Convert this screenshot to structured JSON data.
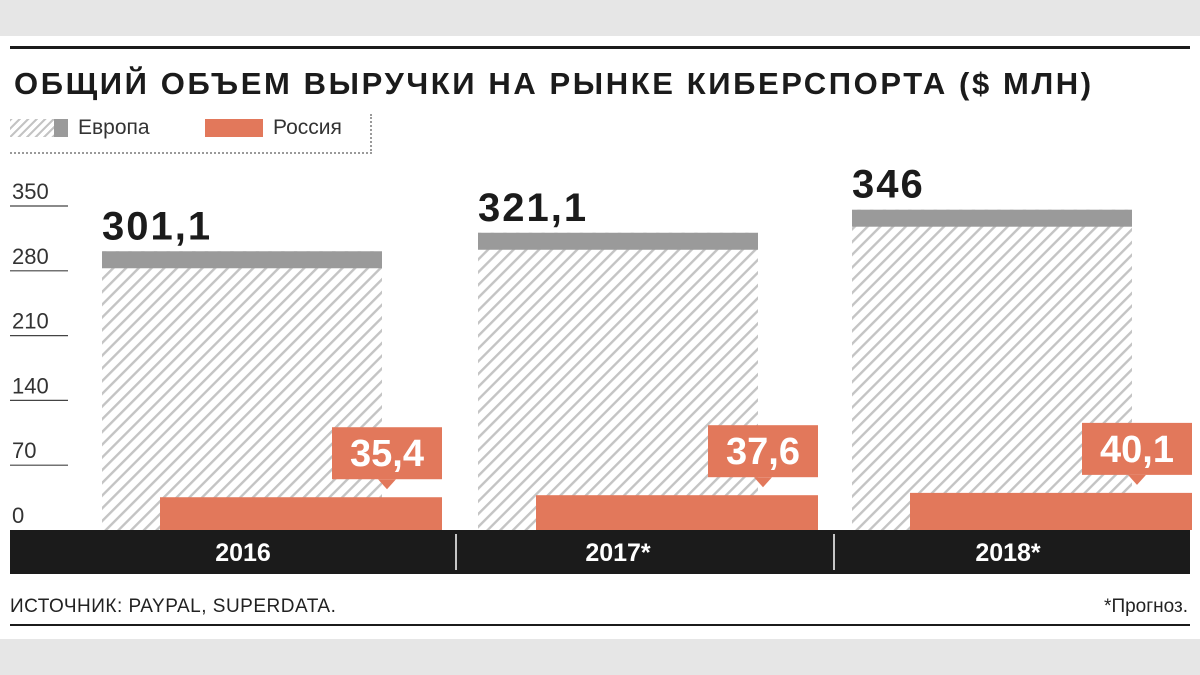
{
  "title": "ОБЩИЙ ОБЪЕМ ВЫРУЧКИ НА РЫНКЕ КИБЕРСПОРТА ($ МЛН)",
  "legend": {
    "europe": "Европа",
    "russia": "Россия"
  },
  "source": "ИСТОЧНИК: PAYPAL, SUPERDATA.",
  "note": "*Прогноз.",
  "colors": {
    "europe_cap": "#9a9a9a",
    "russia": "#e2785b",
    "hatch": "#c4c4c4",
    "axis_bar": "#1b1b1b",
    "text": "#1b1b1b"
  },
  "chart_data": {
    "type": "bar",
    "categories": [
      "2016",
      "2017*",
      "2018*"
    ],
    "series": [
      {
        "name": "Европа",
        "values": [
          301.1,
          321.1,
          346
        ],
        "labels": [
          "301,1",
          "321,1",
          "346"
        ]
      },
      {
        "name": "Россия",
        "values": [
          35.4,
          37.6,
          40.1
        ],
        "labels": [
          "35,4",
          "37,6",
          "40,1"
        ]
      }
    ],
    "ylim": [
      0,
      350
    ],
    "yticks": [
      "0",
      "70",
      "140",
      "210",
      "280",
      "350"
    ],
    "ytick_values": [
      0,
      70,
      140,
      210,
      280,
      350
    ],
    "grid": false,
    "legend_position": "top-left"
  }
}
